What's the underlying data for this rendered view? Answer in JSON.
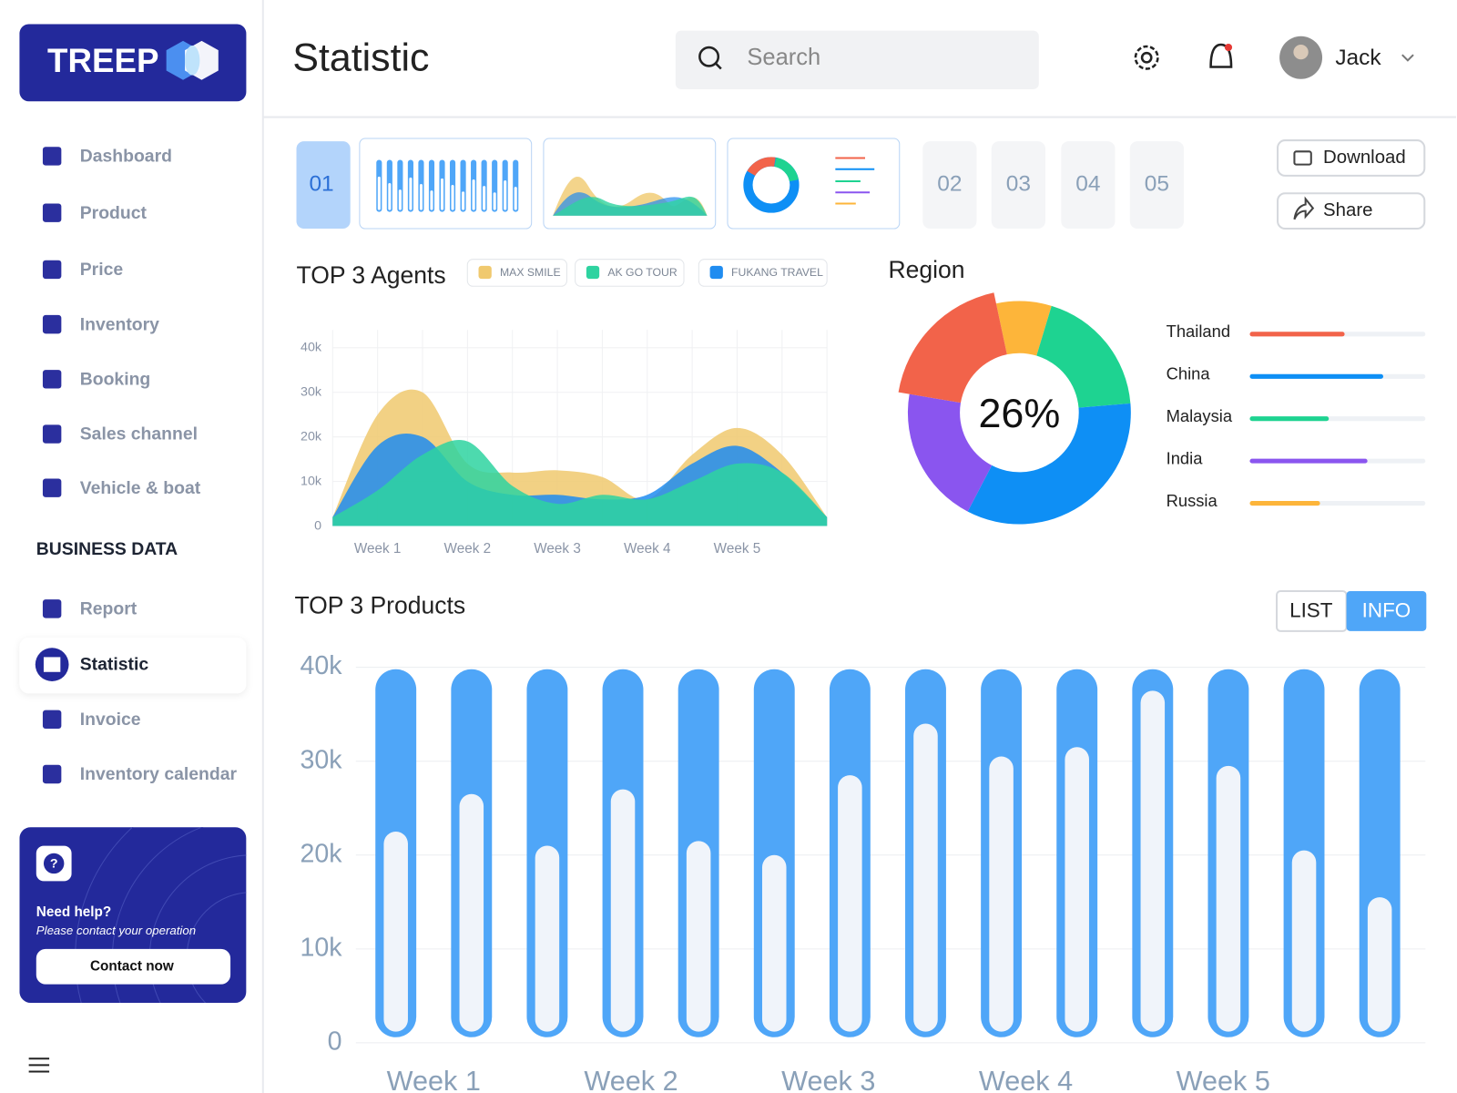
{
  "brand": "TREEP",
  "nav": [
    "Dashboard",
    "Product",
    "Price",
    "Inventory",
    "Booking",
    "Sales channel",
    "Vehicle & boat"
  ],
  "section": "BUSINESS DATA",
  "nav2": [
    "Report",
    "Statistic",
    "Invoice",
    "Inventory calendar"
  ],
  "help": {
    "title": "Need help?",
    "text": "Please contact your operation",
    "button": "Contact now"
  },
  "header": {
    "title": "Statistic",
    "search": "Search",
    "user": "Jack"
  },
  "pages": [
    "01",
    "02",
    "03",
    "04",
    "05"
  ],
  "actions": [
    "Download",
    "Share"
  ],
  "toggle": [
    "LIST",
    "INFO"
  ],
  "chart_data": [
    {
      "type": "area",
      "title": "TOP 3 Agents",
      "categories": [
        null,
        "Week 1",
        null,
        "Week 2",
        null,
        "Week 3",
        null,
        "Week 4",
        null,
        "Week 5",
        null,
        null
      ],
      "series": [
        {
          "name": "MAX SMILE",
          "color": "#f0c96e",
          "values": [
            2000,
            25000,
            30000,
            14000,
            12000,
            12500,
            11000,
            6000,
            16000,
            22000,
            16000,
            2000
          ]
        },
        {
          "name": "AK GO TOUR",
          "color": "#2ed3a0",
          "values": [
            2000,
            8000,
            16000,
            19000,
            9000,
            5000,
            7000,
            6000,
            10000,
            14000,
            12000,
            2000
          ]
        },
        {
          "name": "FUKANG TRAVEL",
          "color": "#1f8cf0",
          "values": [
            2000,
            18000,
            20000,
            10000,
            7000,
            7000,
            6000,
            7000,
            14000,
            18000,
            12000,
            2000
          ]
        }
      ],
      "ylim": [
        0,
        44000
      ],
      "yticks": [
        0,
        {
          "value": 10000,
          "label": "10k"
        },
        {
          "value": 20000,
          "label": "20k"
        },
        {
          "value": 30000,
          "label": "30k"
        },
        {
          "value": 40000,
          "label": "40k"
        }
      ],
      "grid": true
    },
    {
      "type": "donut",
      "title": "Region",
      "center_label": "26%",
      "values": [
        8,
        19,
        34,
        20,
        19
      ],
      "colors": [
        "#fdb53a",
        "#1ed391",
        "#0e8ff5",
        "#8a55ef",
        "#f2634a"
      ],
      "legend": [
        {
          "name": "Thailand",
          "color": "#f2634a",
          "progress": 54
        },
        {
          "name": "China",
          "color": "#0e8ff5",
          "progress": 76
        },
        {
          "name": "Malaysia",
          "color": "#1ed391",
          "progress": 45
        },
        {
          "name": "India",
          "color": "#8a55ef",
          "progress": 67
        },
        {
          "name": "Russia",
          "color": "#fdb53a",
          "progress": 40
        }
      ],
      "progress_lim": [
        0,
        100
      ]
    },
    {
      "type": "bar",
      "title": "TOP 3 Products",
      "color": "#4fa6f8",
      "values": [
        22500,
        26500,
        21000,
        27000,
        21500,
        20000,
        28500,
        34000,
        30500,
        31500,
        37500,
        29500,
        20500,
        15500
      ],
      "x_labels": [
        "Week 1",
        "Week 2",
        "Week 3",
        "Week 4",
        "Week 5"
      ],
      "ylim": [
        0,
        40000
      ],
      "yticks": [
        0,
        {
          "value": 10000,
          "label": "10k"
        },
        {
          "value": 20000,
          "label": "20k"
        },
        {
          "value": 30000,
          "label": "30k"
        },
        {
          "value": 40000,
          "label": "40k"
        }
      ],
      "grid": true
    }
  ]
}
